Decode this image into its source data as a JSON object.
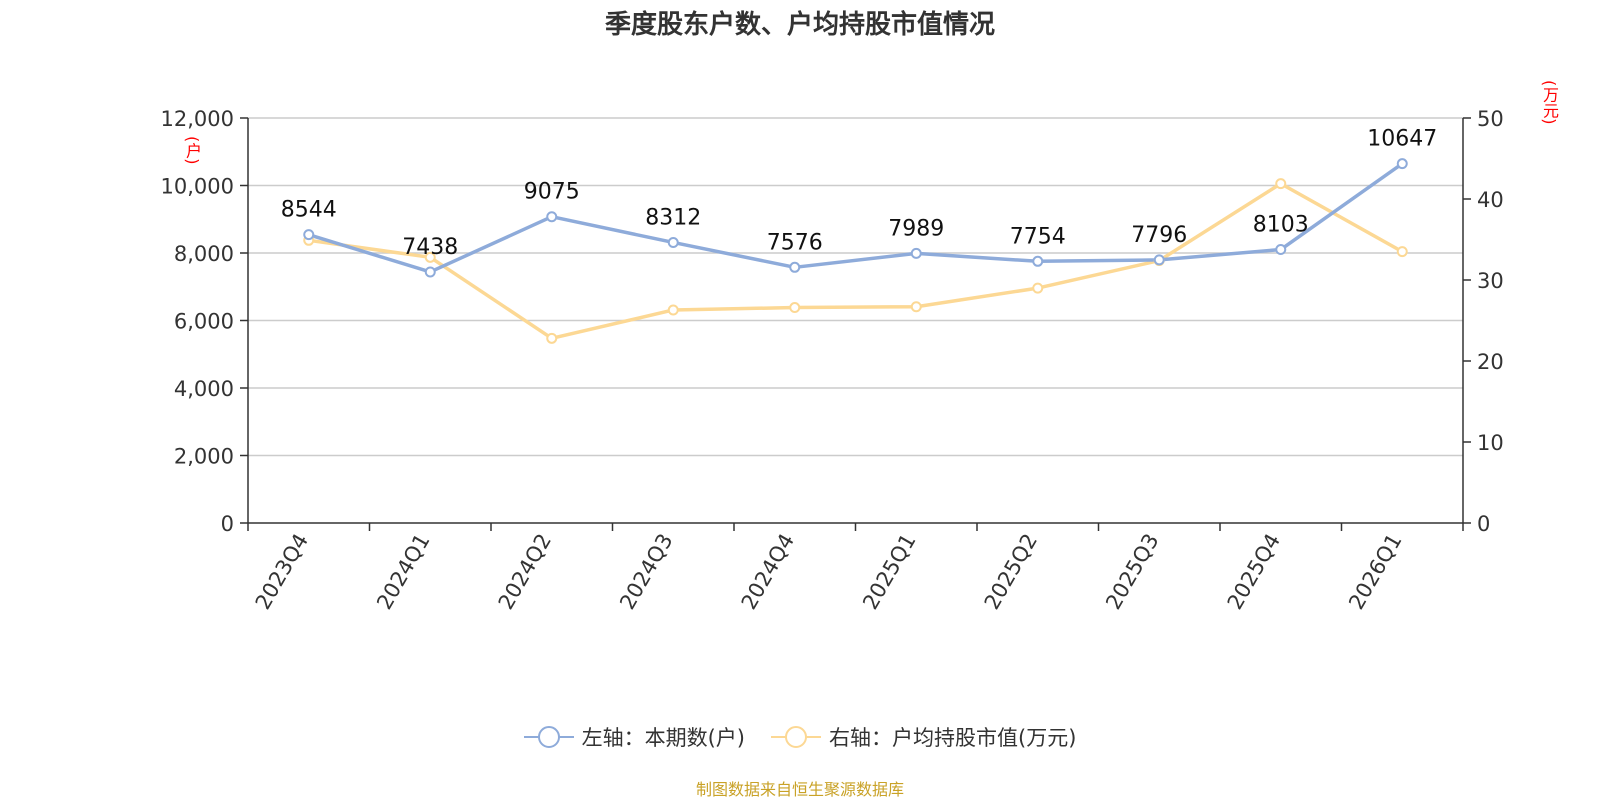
{
  "title": "季度股东户数、户均持股市值情况",
  "source": "制图数据来自恒生聚源数据库",
  "left_unit": "(户)",
  "right_unit": "(万元)",
  "colors": {
    "series1": "#8eabda",
    "series2": "#fcd894",
    "unit": "#ff0000",
    "source": "#c9a227",
    "grid": "#cccccc",
    "axis": "#333333",
    "text": "#333333"
  },
  "legend": [
    {
      "label": "左轴：本期数(户)"
    },
    {
      "label": "右轴：户均持股市值(万元)"
    }
  ],
  "chart_data": {
    "type": "line",
    "title": "季度股东户数、户均持股市值情况",
    "categories": [
      "2023Q4",
      "2024Q1",
      "2024Q2",
      "2024Q3",
      "2024Q4",
      "2025Q1",
      "2025Q2",
      "2025Q3",
      "2025Q4",
      "2026Q1"
    ],
    "y_left": {
      "min": 0,
      "max": 12000,
      "step": 2000,
      "ticks": [
        "0",
        "2,000",
        "4,000",
        "6,000",
        "8,000",
        "10,000",
        "12,000"
      ],
      "label": "(户)"
    },
    "y_right": {
      "min": 0,
      "max": 50,
      "step": 10,
      "ticks": [
        "0",
        "10",
        "20",
        "30",
        "40",
        "50"
      ],
      "label": "(万元)"
    },
    "grid": true,
    "legend_position": "bottom",
    "series": [
      {
        "name": "左轴：本期数(户)",
        "axis": "left",
        "show_labels": true,
        "values": [
          8544,
          7438,
          9075,
          8312,
          7576,
          7989,
          7754,
          7796,
          8103,
          10647
        ]
      },
      {
        "name": "右轴：户均持股市值(万元)",
        "axis": "right",
        "show_labels": false,
        "values": [
          34.9,
          32.8,
          22.8,
          26.3,
          26.6,
          26.7,
          29.0,
          32.4,
          41.9,
          33.5
        ]
      }
    ]
  }
}
